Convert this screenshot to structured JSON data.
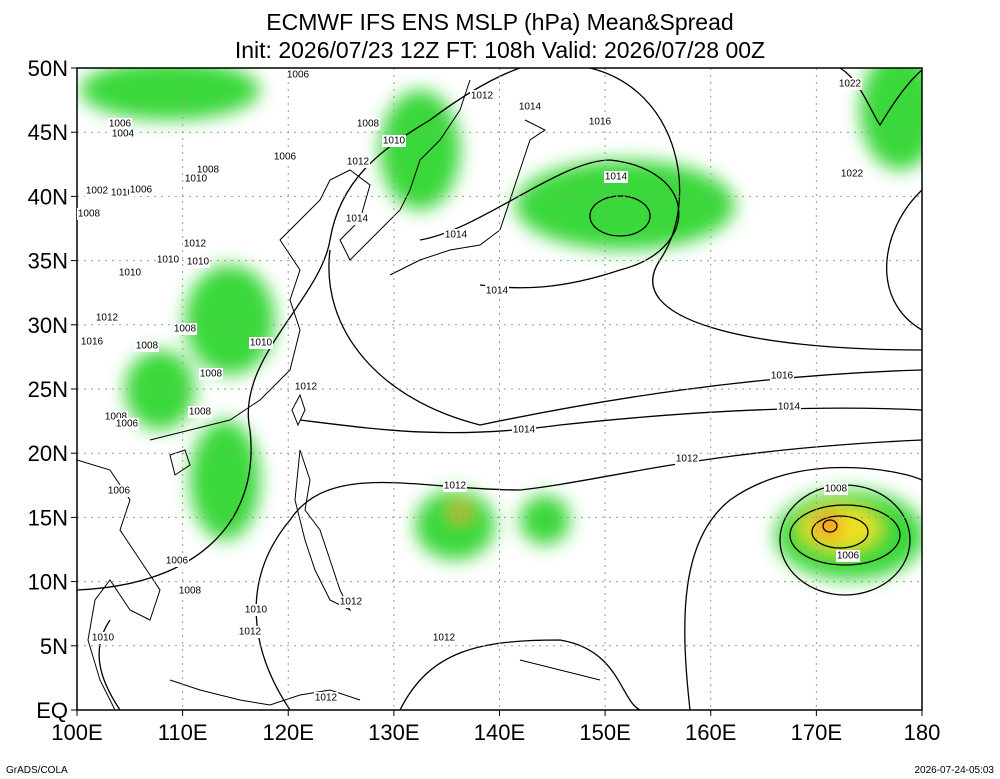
{
  "header": {
    "title": "ECMWF IFS ENS MSLP (hPa) Mean&Spread",
    "subtitle": "Init: 2026/07/23 12Z  FT: 108h  Valid: 2026/07/28 00Z"
  },
  "axes": {
    "lat_labels": [
      "50N",
      "45N",
      "40N",
      "35N",
      "30N",
      "25N",
      "20N",
      "15N",
      "10N",
      "5N",
      "EQ"
    ],
    "lon_labels": [
      "100E",
      "110E",
      "120E",
      "130E",
      "140E",
      "150E",
      "160E",
      "170E",
      "180"
    ]
  },
  "contour_labels": [
    "1006",
    "1012",
    "1014",
    "1016",
    "1022",
    "1006",
    "1004",
    "1008",
    "1010",
    "1006",
    "1012",
    "1008",
    "1010",
    "1014",
    "1022",
    "1002",
    "1010",
    "1006",
    "1008",
    "1014",
    "1014",
    "1012",
    "1010",
    "1010",
    "1010",
    "1014",
    "1012",
    "1008",
    "1016",
    "1008",
    "1010",
    "1008",
    "1012",
    "1016",
    "1014",
    "1008",
    "1008",
    "1006",
    "1014",
    "1012",
    "1012",
    "1006",
    "1008",
    "1006",
    "1006",
    "1008",
    "1012",
    "1010",
    "1012",
    "1010",
    "1012",
    "1012"
  ],
  "footer": {
    "left": "GrADS/COLA",
    "right": "2026-07-24-05:03"
  }
}
